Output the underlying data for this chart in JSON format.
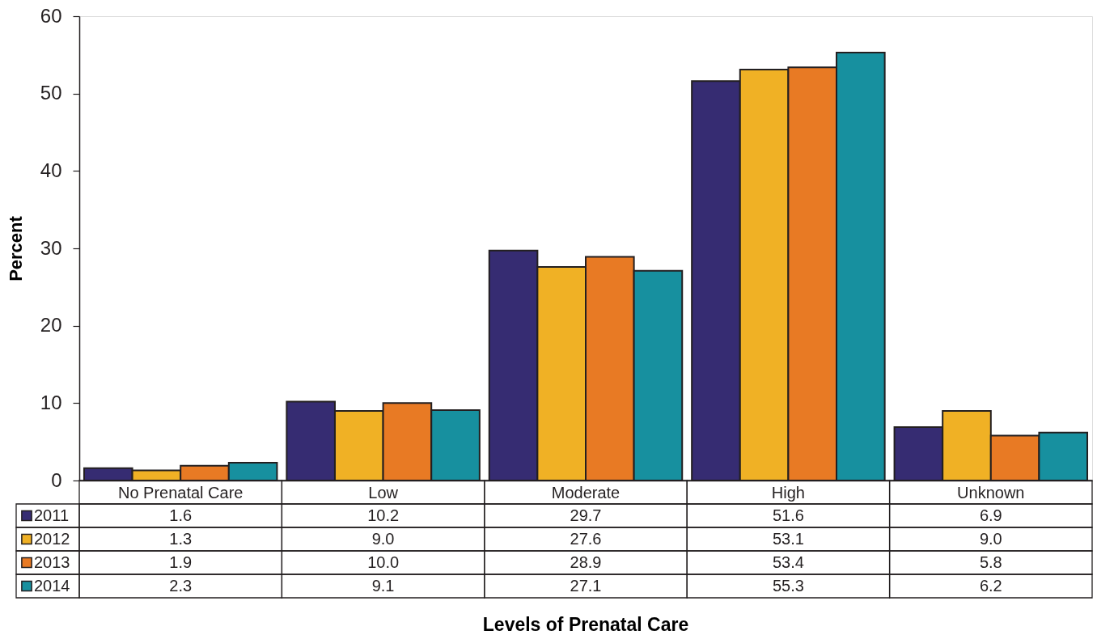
{
  "chart_data": {
    "type": "bar",
    "ylabel": "Percent",
    "categories": [
      "No Prenatal Care",
      "Low",
      "Moderate",
      "High",
      "Unknown"
    ],
    "series": [
      {
        "name": "2011",
        "color": "#362c72",
        "values": [
          1.6,
          10.2,
          29.7,
          51.6,
          6.9
        ],
        "value_labels": [
          "1.6",
          "10.2",
          "29.7",
          "51.6",
          "6.9"
        ]
      },
      {
        "name": "2012",
        "color": "#f0b125",
        "values": [
          1.3,
          9.0,
          27.6,
          53.1,
          9.0
        ],
        "value_labels": [
          "1.3",
          "9.0",
          "27.6",
          "53.1",
          "9.0"
        ]
      },
      {
        "name": "2013",
        "color": "#e87a24",
        "values": [
          1.9,
          10.0,
          28.9,
          53.4,
          5.8
        ],
        "value_labels": [
          "1.9",
          "10.0",
          "28.9",
          "53.4",
          "5.8"
        ]
      },
      {
        "name": "2014",
        "color": "#17909f",
        "values": [
          2.3,
          9.1,
          27.1,
          55.3,
          6.2
        ],
        "value_labels": [
          "2.3",
          "9.1",
          "27.1",
          "55.3",
          "6.2"
        ]
      }
    ],
    "ylim": [
      0,
      60
    ],
    "yticks": [
      0,
      10,
      20,
      30,
      40,
      50,
      60
    ],
    "legend": "bottom left",
    "annotations": [
      "Levels of Prenatal Care"
    ]
  }
}
